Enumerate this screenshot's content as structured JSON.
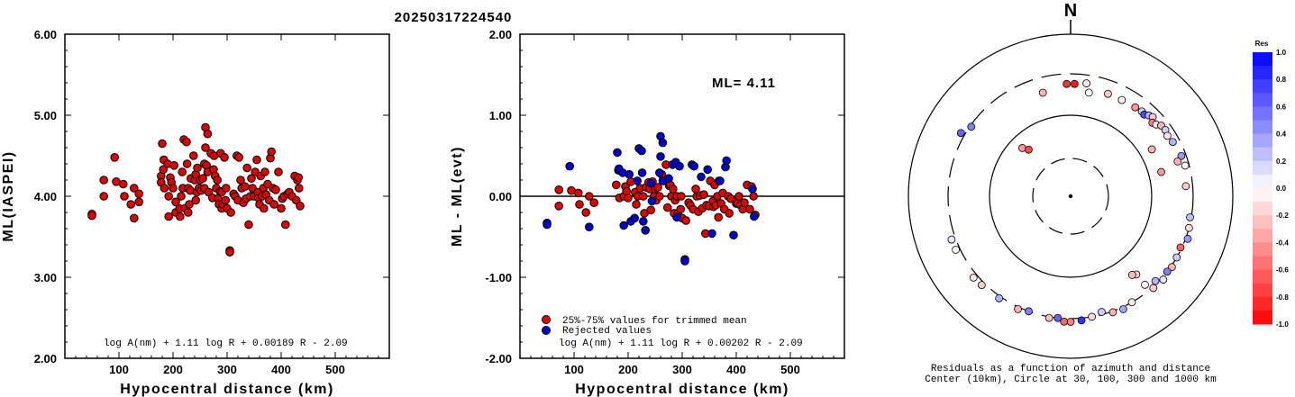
{
  "figure_title": "20250317224540",
  "chart_data": [
    {
      "type": "scatter",
      "xlabel": "Hypocentral distance (km)",
      "ylabel": "ML(IASPEI)",
      "xlim": [
        0,
        600
      ],
      "ylim": [
        2.0,
        6.0
      ],
      "x_ticks": [
        "100",
        "200",
        "300",
        "400",
        "500"
      ],
      "y_ticks": [
        "2.00",
        "3.00",
        "4.00",
        "5.00",
        "6.00"
      ],
      "formula": "log A(nm) + 1.11 log R + 0.00189 R - 2.09",
      "grid": false,
      "color": "#dd0000",
      "x": [
        50,
        50,
        72,
        72,
        92,
        95,
        108,
        110,
        122,
        128,
        128,
        137,
        137,
        178,
        178,
        180,
        182,
        183,
        184,
        190,
        192,
        192,
        195,
        197,
        200,
        202,
        205,
        205,
        212,
        213,
        215,
        217,
        218,
        220,
        222,
        225,
        226,
        228,
        228,
        230,
        232,
        233,
        238,
        240,
        242,
        242,
        244,
        245,
        248,
        250,
        252,
        255,
        258,
        258,
        260,
        260,
        262,
        264,
        264,
        266,
        270,
        273,
        275,
        276,
        278,
        280,
        282,
        283,
        285,
        287,
        288,
        290,
        290,
        292,
        295,
        297,
        298,
        300,
        305,
        305,
        307,
        312,
        315,
        318,
        320,
        322,
        325,
        327,
        330,
        333,
        335,
        337,
        340,
        343,
        345,
        347,
        350,
        352,
        355,
        357,
        358,
        360,
        362,
        365,
        367,
        368,
        370,
        372,
        375,
        378,
        380,
        382,
        385,
        387,
        390,
        395,
        400,
        402,
        405,
        408,
        412,
        415,
        420,
        425,
        428,
        430,
        432,
        433,
        435
      ],
      "y": [
        3.78,
        3.76,
        4.2,
        4.0,
        4.48,
        4.18,
        4.15,
        4.0,
        3.9,
        4.1,
        3.73,
        3.93,
        4.03,
        4.25,
        4.17,
        4.65,
        4.33,
        4.45,
        4.1,
        4.4,
        4.0,
        3.75,
        4.23,
        4.17,
        4.1,
        4.38,
        3.93,
        3.8,
        3.85,
        3.75,
        4.0,
        4.3,
        4.1,
        4.7,
        3.85,
        4.67,
        4.4,
        4.1,
        3.8,
        3.9,
        4.07,
        4.22,
        4.5,
        4.2,
        3.95,
        4.27,
        4.05,
        4.35,
        4.1,
        4.2,
        4.07,
        4.22,
        4.1,
        4.4,
        4.85,
        4.6,
        4.38,
        4.3,
        4.77,
        4.05,
        4.53,
        3.98,
        4.33,
        4.5,
        4.25,
        4.1,
        4.2,
        3.97,
        3.9,
        4.06,
        4.53,
        3.85,
        4.05,
        3.9,
        4.48,
        3.95,
        4.1,
        3.85,
        3.33,
        3.31,
        3.8,
        4.03,
        4.0,
        4.5,
        3.95,
        4.48,
        4.2,
        4.1,
        3.92,
        4.12,
        3.97,
        4.35,
        3.65,
        4.0,
        4.22,
        4.1,
        4.0,
        4.3,
        4.45,
        4.05,
        3.98,
        3.9,
        4.25,
        4.0,
        4.1,
        3.85,
        4.3,
        4.02,
        4.15,
        3.95,
        4.47,
        4.55,
        4.1,
        3.9,
        4.08,
        4.3,
        3.85,
        3.97,
        4.0,
        3.65,
        4.03,
        4.05,
        4.0,
        4.25,
        3.95,
        4.2,
        4.23,
        4.1,
        3.88
      ]
    },
    {
      "type": "scatter",
      "xlabel": "Hypocentral distance (km)",
      "ylabel": "ML - ML(evt)",
      "xlim": [
        0,
        600
      ],
      "ylim": [
        -2.0,
        2.0
      ],
      "x_ticks": [
        "100",
        "200",
        "300",
        "400",
        "500"
      ],
      "y_ticks": [
        "-2.00",
        "-1.00",
        "0.00",
        "1.00",
        "2.00"
      ],
      "annotation": "ML= 4.11",
      "zero_line": true,
      "legend": [
        {
          "label": "25%-75% values for trimmed mean",
          "color": "#dd0000"
        },
        {
          "label": "Rejected values",
          "color": "#0000cc"
        }
      ],
      "formula": "log A(nm) + 1.11 log R + 0.00202 R - 2.09",
      "grid": false,
      "series": [
        {
          "name": "25%-75% values for trimmed mean",
          "color": "#dd0000",
          "x": [
            72,
            72,
            95,
            108,
            110,
            122,
            128,
            137,
            178,
            184,
            192,
            195,
            197,
            200,
            205,
            213,
            215,
            218,
            222,
            228,
            230,
            233,
            238,
            240,
            242,
            245,
            248,
            250,
            252,
            255,
            258,
            262,
            266,
            270,
            273,
            276,
            278,
            280,
            283,
            285,
            287,
            290,
            292,
            297,
            298,
            300,
            307,
            312,
            315,
            320,
            325,
            327,
            330,
            333,
            337,
            340,
            343,
            345,
            350,
            352,
            357,
            358,
            360,
            362,
            365,
            367,
            368,
            372,
            375,
            378,
            385,
            387,
            390,
            400,
            402,
            405,
            408,
            412,
            415,
            420,
            425,
            428,
            432,
            435
          ],
          "y": [
            0.08,
            -0.12,
            0.07,
            0.04,
            -0.1,
            -0.2,
            0.0,
            -0.08,
            0.14,
            -0.02,
            0.0,
            0.12,
            0.06,
            -0.02,
            0.18,
            0.05,
            -0.1,
            0.0,
            0.1,
            0.0,
            -0.21,
            0.11,
            0.17,
            0.09,
            -0.17,
            0.18,
            0.0,
            0.09,
            -0.05,
            0.11,
            0.0,
            0.27,
            0.19,
            0.39,
            -0.14,
            0.13,
            0.14,
            0.0,
            0.09,
            -0.21,
            -0.05,
            0.0,
            -0.21,
            -0.16,
            0.0,
            -0.27,
            -0.3,
            -0.08,
            -0.11,
            -0.16,
            0.09,
            0.0,
            -0.19,
            0.01,
            -0.15,
            0.02,
            -0.46,
            -0.11,
            -0.12,
            0.19,
            -0.06,
            -0.13,
            0.14,
            -0.11,
            0.0,
            -0.26,
            0.19,
            -0.09,
            0.04,
            -0.16,
            0.0,
            -0.21,
            -0.03,
            -0.09,
            -0.08,
            0.0,
            -0.11,
            -0.16,
            -0.08,
            0.14,
            -0.16,
            0.12,
            0.0,
            -0.23
          ]
        },
        {
          "name": "Rejected values",
          "color": "#0000cc",
          "x": [
            50,
            50,
            92,
            128,
            180,
            182,
            183,
            190,
            192,
            202,
            205,
            212,
            217,
            220,
            225,
            226,
            228,
            232,
            242,
            244,
            258,
            260,
            260,
            264,
            264,
            275,
            282,
            288,
            290,
            295,
            305,
            305,
            318,
            322,
            335,
            347,
            355,
            370,
            380,
            382,
            395,
            430,
            433
          ],
          "y": [
            -0.33,
            -0.35,
            0.37,
            -0.38,
            0.54,
            0.32,
            0.34,
            0.29,
            -0.36,
            0.27,
            -0.31,
            -0.27,
            0.19,
            0.59,
            0.56,
            0.29,
            -0.31,
            -0.42,
            0.16,
            -0.06,
            0.29,
            0.74,
            0.49,
            0.19,
            0.66,
            0.22,
            0.39,
            0.42,
            -0.26,
            0.37,
            -0.78,
            -0.8,
            0.39,
            0.37,
            0.24,
            0.33,
            -0.46,
            0.19,
            0.36,
            0.44,
            -0.48,
            0.09,
            -0.25
          ]
        }
      ]
    },
    {
      "type": "scatter",
      "subtype": "polar residual map",
      "north_label": "N",
      "caption_line1": "Residuals as a function of azimuth and distance",
      "caption_line2": "Center (10km), Circle at 30, 100, 300 and 1000 km",
      "colorbar_title": "Res",
      "colorbar_ticks": [
        "1.0",
        "0.8",
        "0.6",
        "0.4",
        "0.2",
        "0.0",
        "-0.2",
        "-0.4",
        "-0.6",
        "-0.8",
        "-1.0"
      ],
      "colorbar_range": [
        -1.0,
        1.0
      ],
      "rings_km": [
        30,
        100,
        300,
        1000
      ],
      "points": [
        {
          "az": 358,
          "dist": 230,
          "res": -0.8
        },
        {
          "az": 2,
          "dist": 230,
          "res": -0.9
        },
        {
          "az": 8,
          "dist": 240,
          "res": -0.1
        },
        {
          "az": 345,
          "dist": 200,
          "res": -0.3
        },
        {
          "az": 20,
          "dist": 210,
          "res": -0.2
        },
        {
          "az": 28,
          "dist": 210,
          "res": -0.05
        },
        {
          "az": 36,
          "dist": 215,
          "res": -0.4
        },
        {
          "az": 40,
          "dist": 220,
          "res": 0.2
        },
        {
          "az": 42,
          "dist": 215,
          "res": 0.7
        },
        {
          "az": 44,
          "dist": 230,
          "res": 0.3
        },
        {
          "az": 46,
          "dist": 240,
          "res": -0.2
        },
        {
          "az": 48,
          "dist": 215,
          "res": -0.5
        },
        {
          "az": 50,
          "dist": 225,
          "res": 0.1
        },
        {
          "az": 52,
          "dist": 245,
          "res": -0.3
        },
        {
          "az": 55,
          "dist": 250,
          "res": 0.2
        },
        {
          "az": 58,
          "dist": 240,
          "res": -0.1
        },
        {
          "az": 62,
          "dist": 250,
          "res": 0.3
        },
        {
          "az": 70,
          "dist": 265,
          "res": 0.4
        },
        {
          "az": 75,
          "dist": 270,
          "res": -0.05
        },
        {
          "az": 72,
          "dist": 230,
          "res": -0.3
        },
        {
          "az": 85,
          "dist": 250,
          "res": -0.2
        },
        {
          "az": 100,
          "dist": 290,
          "res": 0.25
        },
        {
          "az": 105,
          "dist": 300,
          "res": -0.15
        },
        {
          "az": 110,
          "dist": 320,
          "res": 0.4
        },
        {
          "az": 115,
          "dist": 290,
          "res": -0.6
        },
        {
          "az": 120,
          "dist": 300,
          "res": 0.2
        },
        {
          "az": 125,
          "dist": 310,
          "res": -0.3
        },
        {
          "az": 128,
          "dist": 300,
          "res": 0.5
        },
        {
          "az": 132,
          "dist": 320,
          "res": 0.1
        },
        {
          "az": 135,
          "dist": 280,
          "res": 0.3
        },
        {
          "az": 138,
          "dist": 310,
          "res": -0.2
        },
        {
          "az": 140,
          "dist": 250,
          "res": 0.0
        },
        {
          "az": 150,
          "dist": 300,
          "res": -0.1
        },
        {
          "az": 155,
          "dist": 320,
          "res": 0.35
        },
        {
          "az": 160,
          "dist": 310,
          "res": -0.3
        },
        {
          "az": 165,
          "dist": 280,
          "res": 0.2
        },
        {
          "az": 170,
          "dist": 300,
          "res": -0.15
        },
        {
          "az": 175,
          "dist": 320,
          "res": 0.8
        },
        {
          "az": 180,
          "dist": 330,
          "res": -0.5
        },
        {
          "az": 183,
          "dist": 330,
          "res": -0.6
        },
        {
          "az": 186,
          "dist": 300,
          "res": 0.6
        },
        {
          "az": 190,
          "dist": 310,
          "res": -0.25
        },
        {
          "az": 200,
          "dist": 300,
          "res": 0.5
        },
        {
          "az": 205,
          "dist": 320,
          "res": -0.3
        },
        {
          "az": 215,
          "dist": 320,
          "res": 0.3
        },
        {
          "az": 225,
          "dist": 330,
          "res": -0.2
        },
        {
          "az": 230,
          "dist": 340,
          "res": -0.1
        },
        {
          "az": 245,
          "dist": 340,
          "res": 0.0
        },
        {
          "az": 250,
          "dist": 340,
          "res": 0.1
        },
        {
          "az": 300,
          "dist": 340,
          "res": 0.6
        },
        {
          "az": 305,
          "dist": 290,
          "res": 0.5
        },
        {
          "az": 140,
          "dist": 175,
          "res": -0.2
        },
        {
          "az": 142,
          "dist": 165,
          "res": -0.25
        },
        {
          "az": 10,
          "dist": 190,
          "res": 0.0
        },
        {
          "az": 60,
          "dist": 140,
          "res": -0.3
        },
        {
          "az": 75,
          "dist": 140,
          "res": -0.4
        },
        {
          "az": 315,
          "dist": 70,
          "res": -0.4
        },
        {
          "az": 318,
          "dist": 60,
          "res": -0.7
        }
      ]
    }
  ]
}
